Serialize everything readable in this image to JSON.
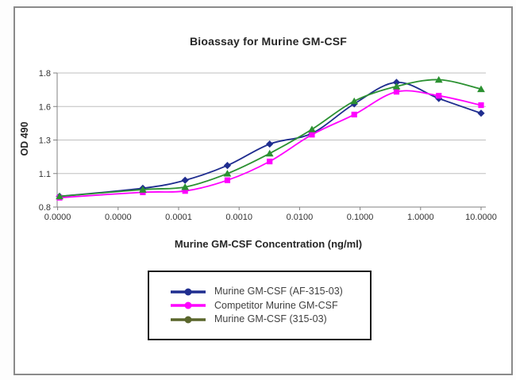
{
  "chart_data": {
    "type": "line",
    "title": "Bioassay for Murine GM-CSF",
    "xlabel": "Murine GM-CSF Concentration (ng/ml)",
    "ylabel": "OD 490",
    "x_axis": {
      "scale": "log",
      "tick_labels": [
        "0.0000",
        "0.0000",
        "0.0001",
        "0.0010",
        "0.0100",
        "0.1000",
        "1.0000",
        "10.0000"
      ]
    },
    "y_axis": {
      "min": 0.8,
      "max": 1.8,
      "tick_labels": [
        "1.8",
        "1.6",
        "1.3",
        "1.1",
        "0.8"
      ]
    },
    "x_ng_ml": [
      0,
      2.56e-05,
      0.000128,
      0.00064,
      0.0032,
      0.016,
      0.08,
      0.4,
      2,
      10
    ],
    "series": [
      {
        "name": "Murine GM-CSF (AF-315-03)",
        "marker": "diamond",
        "color": "#1F2D8F",
        "legend_color": "#1F2D8F",
        "values": [
          0.88,
          0.94,
          1.0,
          1.11,
          1.27,
          1.35,
          1.57,
          1.73,
          1.61,
          1.5
        ]
      },
      {
        "name": "Competitor Murine GM-CSF",
        "marker": "square",
        "color": "#FF00FF",
        "legend_color": "#FF00FF",
        "values": [
          0.87,
          0.91,
          0.92,
          1.0,
          1.14,
          1.34,
          1.49,
          1.66,
          1.63,
          1.56
        ]
      },
      {
        "name": "Murine GM-CSF (315-03)",
        "marker": "triangle",
        "color": "#2B9131",
        "legend_color": "#5A662C",
        "values": [
          0.88,
          0.93,
          0.95,
          1.05,
          1.2,
          1.38,
          1.59,
          1.7,
          1.75,
          1.68
        ]
      }
    ],
    "legend_position": "bottom-center",
    "grid": "horizontal",
    "colors": {
      "gridline": "#BFBFBF",
      "axis": "#808080",
      "frame_border": "#8A8A8A",
      "legend_border": "#1A1A1A",
      "title_text": "#262626",
      "tick_text": "#333333",
      "legend_text": "#404040"
    }
  }
}
